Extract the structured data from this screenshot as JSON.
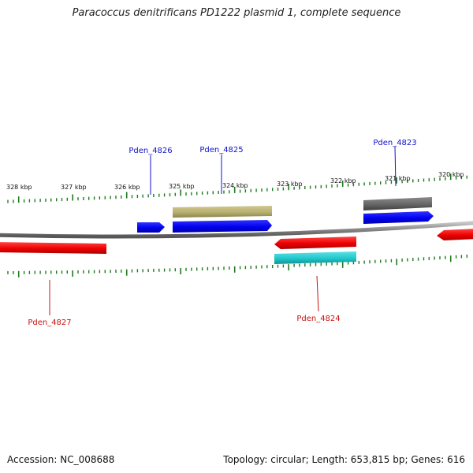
{
  "title": "Paracoccus denitrificans PD1222 plasmid 1, complete sequence",
  "accession": "Accession: NC_008688",
  "summary": "Topology: circular; Length: 653,815 bp; Genes: 616",
  "ruler": {
    "labels": [
      "328 kbp",
      "327 kbp",
      "326 kbp",
      "325 kbp",
      "324 kbp",
      "323 kbp",
      "322 kbp",
      "321 kbp",
      "320 kbp"
    ],
    "tick_color": "#1f7a1f"
  },
  "colors": {
    "forward_label": "#1010cc",
    "reverse_label": "#cc1010",
    "backbone": "#888888"
  },
  "gene_labels": [
    {
      "name": "Pden_4826",
      "strand": "forward"
    },
    {
      "name": "Pden_4825",
      "strand": "forward"
    },
    {
      "name": "Pden_4823",
      "strand": "forward"
    },
    {
      "name": "Pden_4827",
      "strand": "reverse"
    },
    {
      "name": "Pden_4824",
      "strand": "reverse"
    }
  ],
  "features": [
    {
      "type": "CDS",
      "strand": "forward",
      "color": "#0000ee"
    },
    {
      "type": "CDS",
      "strand": "forward",
      "color": "#0000ee"
    },
    {
      "type": "CDS",
      "strand": "forward",
      "color": "#0000ee"
    },
    {
      "type": "gene",
      "strand": "forward",
      "color": "#b8b070"
    },
    {
      "type": "gene",
      "strand": "forward",
      "color": "#666666"
    },
    {
      "type": "CDS",
      "strand": "reverse",
      "color": "#ee0000"
    },
    {
      "type": "CDS",
      "strand": "reverse",
      "color": "#ee0000"
    },
    {
      "type": "CDS",
      "strand": "reverse",
      "color": "#ee0000"
    },
    {
      "type": "gene",
      "strand": "reverse",
      "color": "#20c8cc"
    }
  ]
}
